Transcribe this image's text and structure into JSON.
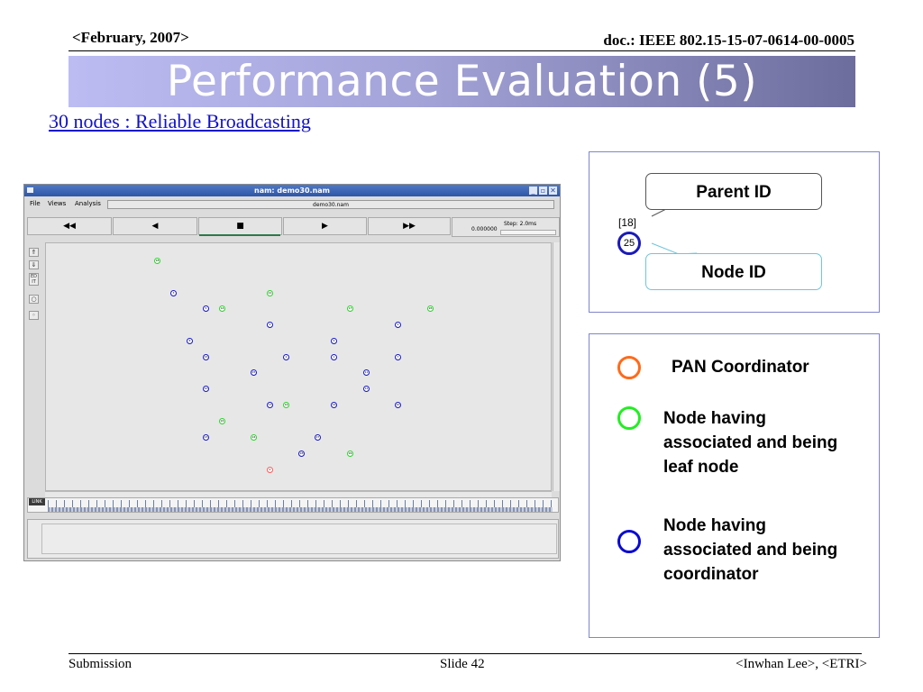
{
  "header": {
    "date": "<February, 2007>",
    "doc_id": "doc.: IEEE 802.15-15-07-0614-00-0005"
  },
  "slide": {
    "title": "Performance Evaluation (5)",
    "subtitle": "30 nodes : Reliable Broadcasting"
  },
  "nam_window": {
    "title": "nam: demo30.nam",
    "menu": [
      "File",
      "Views",
      "Analysis"
    ],
    "filename": "demo30.nam",
    "controls": [
      "◀◀",
      "◀",
      "■",
      "▶",
      "▶▶"
    ],
    "time": "0.000000",
    "step": "Step: 2.0ms",
    "tools": [
      "⇑",
      "⇓",
      "ED IT",
      "○",
      "◦"
    ],
    "timeline_label": "LINK",
    "window_buttons": [
      "_",
      "▫",
      "✕"
    ],
    "nodes": [
      {
        "label": "18",
        "type": "leaf"
      },
      {
        "label": "3",
        "type": "coord"
      },
      {
        "label": "21",
        "type": "leaf"
      },
      {
        "label": "5",
        "type": "coord"
      },
      {
        "label": "14",
        "type": "leaf"
      },
      {
        "label": "17",
        "type": "leaf"
      },
      {
        "label": "26",
        "type": "leaf"
      },
      {
        "label": "4",
        "type": "coord"
      },
      {
        "label": "9",
        "type": "coord"
      },
      {
        "label": "8",
        "type": "coord"
      },
      {
        "label": "6",
        "type": "coord"
      },
      {
        "label": "15",
        "type": "coord"
      },
      {
        "label": "2",
        "type": "coord"
      },
      {
        "label": "1",
        "type": "coord"
      },
      {
        "label": "7",
        "type": "coord"
      },
      {
        "label": "25",
        "type": "coord"
      },
      {
        "label": "11",
        "type": "coord"
      },
      {
        "label": "10",
        "type": "coord"
      },
      {
        "label": "12",
        "type": "coord"
      },
      {
        "label": "13",
        "type": "coord"
      },
      {
        "label": "16",
        "type": "coord"
      },
      {
        "label": "19",
        "type": "leaf"
      },
      {
        "label": "20",
        "type": "coord"
      },
      {
        "label": "22",
        "type": "leaf"
      },
      {
        "label": "23",
        "type": "coord"
      },
      {
        "label": "24",
        "type": "leaf"
      },
      {
        "label": "27",
        "type": "coord"
      },
      {
        "label": "28",
        "type": "coord"
      },
      {
        "label": "29",
        "type": "leaf"
      },
      {
        "label": "0",
        "type": "pan"
      }
    ]
  },
  "legend_top": {
    "parent_label": "Parent ID",
    "parent_example": "[18]",
    "node_example": "25",
    "node_label": "Node ID"
  },
  "legend_bottom": {
    "items": [
      {
        "label": "PAN Coordinator",
        "color": "#ff6a1a"
      },
      {
        "label": "Node having associated and being leaf node",
        "color": "#22ee22"
      },
      {
        "label": "Node having associated and being coordinator",
        "color": "#0a0ad0"
      }
    ]
  },
  "footer": {
    "left": "Submission",
    "center": "Slide 42",
    "right": "<Inwhan Lee>, <ETRI>"
  }
}
